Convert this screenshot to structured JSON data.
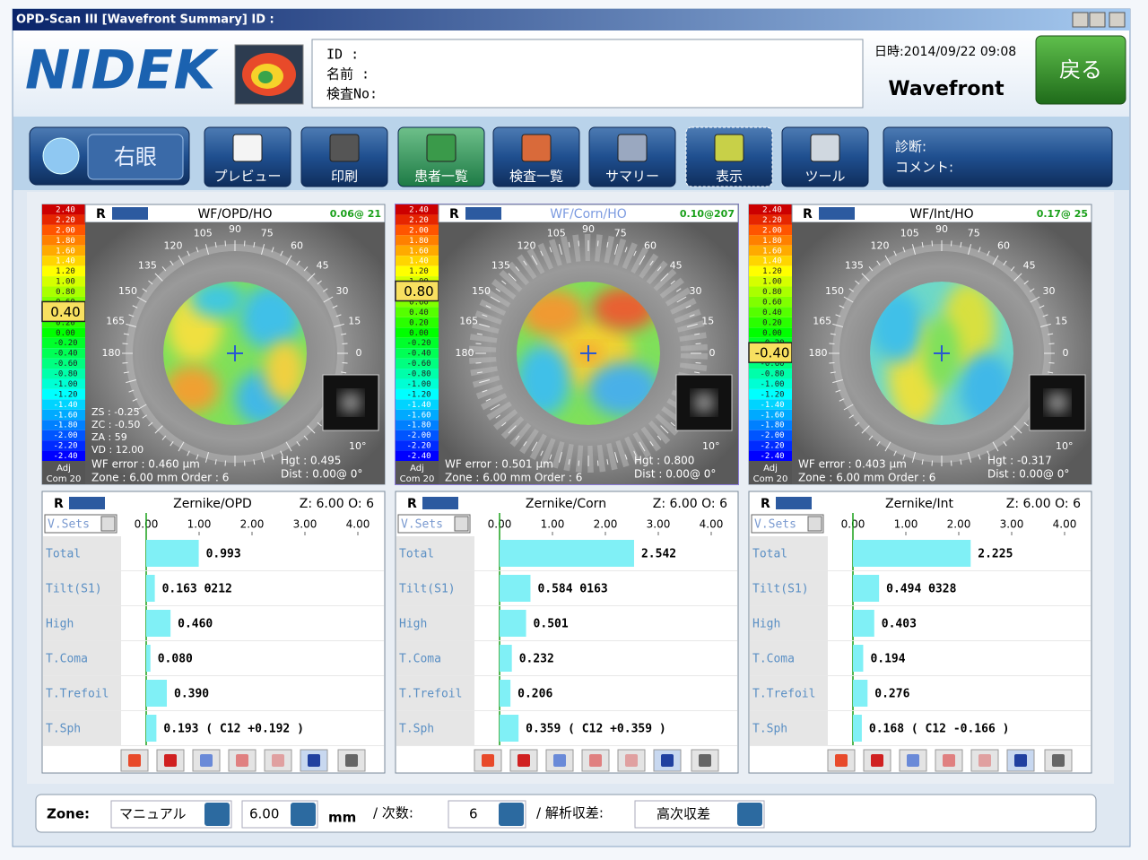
{
  "window": {
    "title": "OPD-Scan III  [Wavefront Summary]  ID :"
  },
  "header": {
    "logo": "NIDEK",
    "id": "ID :",
    "name": "名前 :",
    "exam_no": "検査No:",
    "datetime": "日時:2014/09/22 09:08",
    "mode": "Wavefront",
    "back": "戻る"
  },
  "toolbar": {
    "eye": "右眼",
    "buttons": [
      "プレビュー",
      "印刷",
      "患者一覧",
      "検査一覧",
      "サマリー",
      "表示",
      "ツール"
    ],
    "diagnosis": "診断:",
    "comment": "コメント:"
  },
  "color_scale": [
    "2.40",
    "2.20",
    "2.00",
    "1.80",
    "1.60",
    "1.40",
    "1.20",
    "1.00",
    "0.80",
    "0.60",
    "0.40",
    "0.20",
    "0.00",
    "-0.20",
    "-0.40",
    "-0.60",
    "-0.80",
    "-1.00",
    "-1.20",
    "-1.40",
    "-1.60",
    "-1.80",
    "-2.00",
    "-2.20",
    "-2.40"
  ],
  "angle_labels": [
    "0",
    "15",
    "30",
    "45",
    "60",
    "75",
    "90",
    "105",
    "120",
    "135",
    "150",
    "165",
    "180"
  ],
  "vd_label": "10°",
  "maps": [
    {
      "eye": "R",
      "title": "WF/OPD/HO",
      "peak": "0.06@ 21",
      "marker": "0.40",
      "adj": "Adj",
      "com": "Com 20",
      "stats": [
        "ZS : -0.25",
        "ZC : -0.50",
        "ZA : 59",
        "VD : 12.00"
      ],
      "wf_error": "WF error : 0.460 µm",
      "zone": "Zone : 6.00 mm Order : 6",
      "hgt": "Hgt : 0.495",
      "dist": "Dist : 0.00@ 0°"
    },
    {
      "eye": "R",
      "title": "WF/Corn/HO",
      "peak": "0.10@207",
      "marker": "0.80",
      "adj": "Adj",
      "com": "Com 20",
      "stats": [],
      "wf_error": "WF error : 0.501 µm",
      "zone": "Zone : 6.00 mm Order : 6",
      "hgt": "Hgt : 0.800",
      "dist": "Dist : 0.00@ 0°"
    },
    {
      "eye": "R",
      "title": "WF/Int/HO",
      "peak": "0.17@ 25",
      "marker": "-0.40",
      "adj": "Adj",
      "com": "Com 20",
      "stats": [],
      "wf_error": "WF error : 0.403 µm",
      "zone": "Zone : 6.00 mm Order : 6",
      "hgt": "Hgt : -0.317",
      "dist": "Dist : 0.00@ 0°"
    }
  ],
  "zernike": [
    {
      "eye": "R",
      "title": "Zernike/OPD",
      "order": "Z: 6.00 O: 6",
      "vsets": "V.Sets",
      "ticks": [
        {
          "value": 0,
          "label": "0.00"
        },
        {
          "value": 1,
          "label": "1.00"
        },
        {
          "value": 2,
          "label": "2.00"
        },
        {
          "value": 3,
          "label": "3.00"
        },
        {
          "value": 4,
          "label": "4.00"
        }
      ],
      "rows": [
        {
          "name": "Total",
          "value": 0.993,
          "label": "0.993"
        },
        {
          "name": "Tilt(S1)",
          "value": 0.163,
          "label": "0.163 θ212"
        },
        {
          "name": "High",
          "value": 0.46,
          "label": "0.460"
        },
        {
          "name": "T.Coma",
          "value": 0.08,
          "label": "0.080"
        },
        {
          "name": "T.Trefoil",
          "value": 0.39,
          "label": "0.390"
        },
        {
          "name": "T.Sph",
          "value": 0.193,
          "label": "0.193 ( C12 +0.192 )"
        }
      ]
    },
    {
      "eye": "R",
      "title": "Zernike/Corn",
      "order": "Z: 6.00 O: 6",
      "vsets": "V.Sets",
      "ticks": [
        {
          "value": 0,
          "label": "0.00"
        },
        {
          "value": 1,
          "label": "1.00"
        },
        {
          "value": 2,
          "label": "2.00"
        },
        {
          "value": 3,
          "label": "3.00"
        },
        {
          "value": 4,
          "label": "4.00"
        }
      ],
      "rows": [
        {
          "name": "Total",
          "value": 2.542,
          "label": "2.542"
        },
        {
          "name": "Tilt(S1)",
          "value": 0.584,
          "label": "0.584 θ163"
        },
        {
          "name": "High",
          "value": 0.501,
          "label": "0.501"
        },
        {
          "name": "T.Coma",
          "value": 0.232,
          "label": "0.232"
        },
        {
          "name": "T.Trefoil",
          "value": 0.206,
          "label": "0.206"
        },
        {
          "name": "T.Sph",
          "value": 0.359,
          "label": "0.359 ( C12 +0.359 )"
        }
      ]
    },
    {
      "eye": "R",
      "title": "Zernike/Int",
      "order": "Z: 6.00 O: 6",
      "vsets": "V.Sets",
      "ticks": [
        {
          "value": 0,
          "label": "0.00"
        },
        {
          "value": 1,
          "label": "1.00"
        },
        {
          "value": 2,
          "label": "2.00"
        },
        {
          "value": 3,
          "label": "3.00"
        },
        {
          "value": 4,
          "label": "4.00"
        }
      ],
      "rows": [
        {
          "name": "Total",
          "value": 2.225,
          "label": "2.225"
        },
        {
          "name": "Tilt(S1)",
          "value": 0.494,
          "label": "0.494 θ328"
        },
        {
          "name": "High",
          "value": 0.403,
          "label": "0.403"
        },
        {
          "name": "T.Coma",
          "value": 0.194,
          "label": "0.194"
        },
        {
          "name": "T.Trefoil",
          "value": 0.276,
          "label": "0.276"
        },
        {
          "name": "T.Sph",
          "value": 0.168,
          "label": "0.168 ( C12 -0.166 )"
        }
      ]
    }
  ],
  "footer": {
    "zone_label": "Zone:",
    "zone_mode": "マニュアル",
    "zone_size": "6.00",
    "unit": "mm",
    "order_label": "/ 次数:",
    "order": "6",
    "analysis_label": "/ 解析収差:",
    "analysis": "高次収差"
  }
}
